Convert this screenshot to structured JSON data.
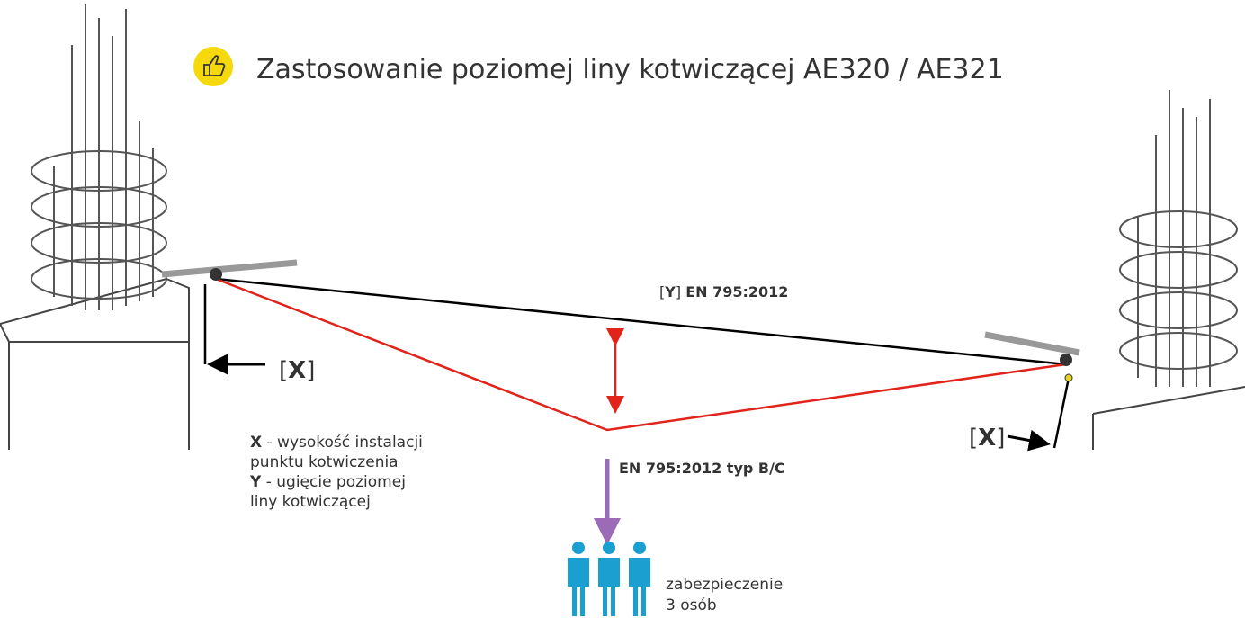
{
  "header": {
    "title": "Zastosowanie poziomej liny kotwiczącej AE320 / AE321"
  },
  "labels": {
    "y_marker": {
      "open": "[",
      "letter": "Y",
      "close": "]",
      "standard": "EN 795:2012"
    },
    "x_marker_left": {
      "open": "[",
      "letter": "X",
      "close": "]"
    },
    "x_marker_right": {
      "open": "[",
      "letter": "X",
      "close": "]"
    },
    "type": "EN 795:2012 typ B/C"
  },
  "legend": [
    {
      "key": "X",
      "lines": [
        " - wysokość instalacji",
        "punktu kotwiczenia"
      ]
    },
    {
      "key": "Y",
      "lines": [
        " - ugięcie poziomej",
        "liny kotwiczącej"
      ]
    }
  ],
  "capacity": {
    "lines": [
      "zabezpieczenie",
      "3 osób"
    ]
  }
}
